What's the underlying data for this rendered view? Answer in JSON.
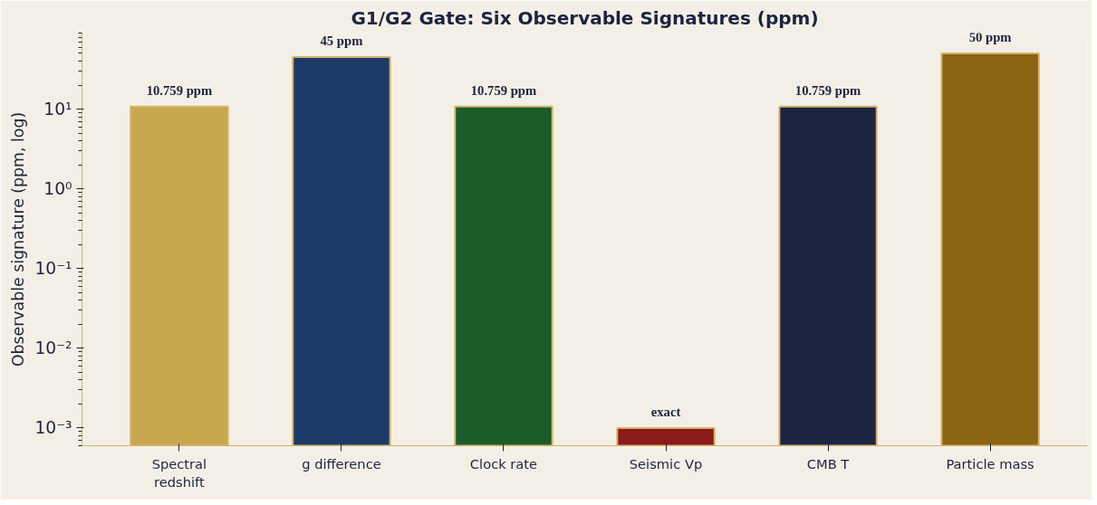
{
  "chart_data": {
    "type": "bar",
    "title": "G1/G2 Gate: Six Observable Signatures (ppm)",
    "ylabel": "Observable signature (ppm, log)",
    "categories": [
      "Spectral redshift",
      "g difference",
      "Clock rate",
      "Seismic Vp",
      "CMB T",
      "Particle mass"
    ],
    "values": [
      10.759,
      45,
      10.759,
      0.001,
      10.759,
      50
    ],
    "colors": [
      "#c8a64e",
      "#1b3a68",
      "#1b5c2a",
      "#8b1a1a",
      "#1b2440",
      "#8b6414"
    ],
    "value_labels": [
      "10.759 ppm",
      "45 ppm",
      "10.759 ppm",
      "exact",
      "10.759 ppm",
      "50 ppm"
    ],
    "log": "y",
    "ylim": [
      0.0006,
      90
    ],
    "yticks": [
      {
        "value": 0.001,
        "label": "10⁻³"
      },
      {
        "value": 0.01,
        "label": "10⁻²"
      },
      {
        "value": 0.1,
        "label": "10⁻¹"
      },
      {
        "value": 1,
        "label": "10⁰"
      },
      {
        "value": 10,
        "label": "10¹"
      }
    ],
    "grid": false
  }
}
